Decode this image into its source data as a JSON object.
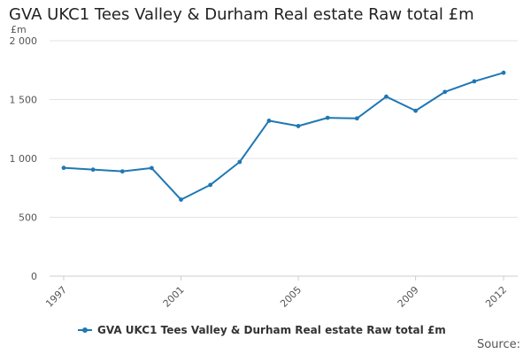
{
  "chart_data": {
    "type": "line",
    "title": "GVA UKC1 Tees Valley & Durham Real estate Raw total £m",
    "ylabel": "£m",
    "xlabel": "",
    "source": "Source:",
    "x": [
      1997,
      1998,
      1999,
      2000,
      2001,
      2002,
      2003,
      2004,
      2005,
      2006,
      2007,
      2008,
      2009,
      2010,
      2011,
      2012
    ],
    "series": [
      {
        "name": "GVA UKC1 Tees Valley & Durham Real estate Raw total £m",
        "values": [
          920,
          905,
          890,
          918,
          650,
          775,
          970,
          1320,
          1275,
          1345,
          1340,
          1525,
          1405,
          1565,
          1655,
          1728
        ],
        "color": "#1f78b4"
      }
    ],
    "ylim": [
      0,
      2000
    ],
    "yticks": [
      0,
      500,
      1000,
      1500,
      2000
    ],
    "ytick_labels": [
      "0",
      "500",
      "1 000",
      "1 500",
      "2 000"
    ],
    "xticks": [
      1997,
      2001,
      2005,
      2009,
      2012
    ],
    "xtick_labels": [
      "1997",
      "2001",
      "2005",
      "2009",
      "2012"
    ],
    "grid": true,
    "legend_position": "bottom"
  }
}
